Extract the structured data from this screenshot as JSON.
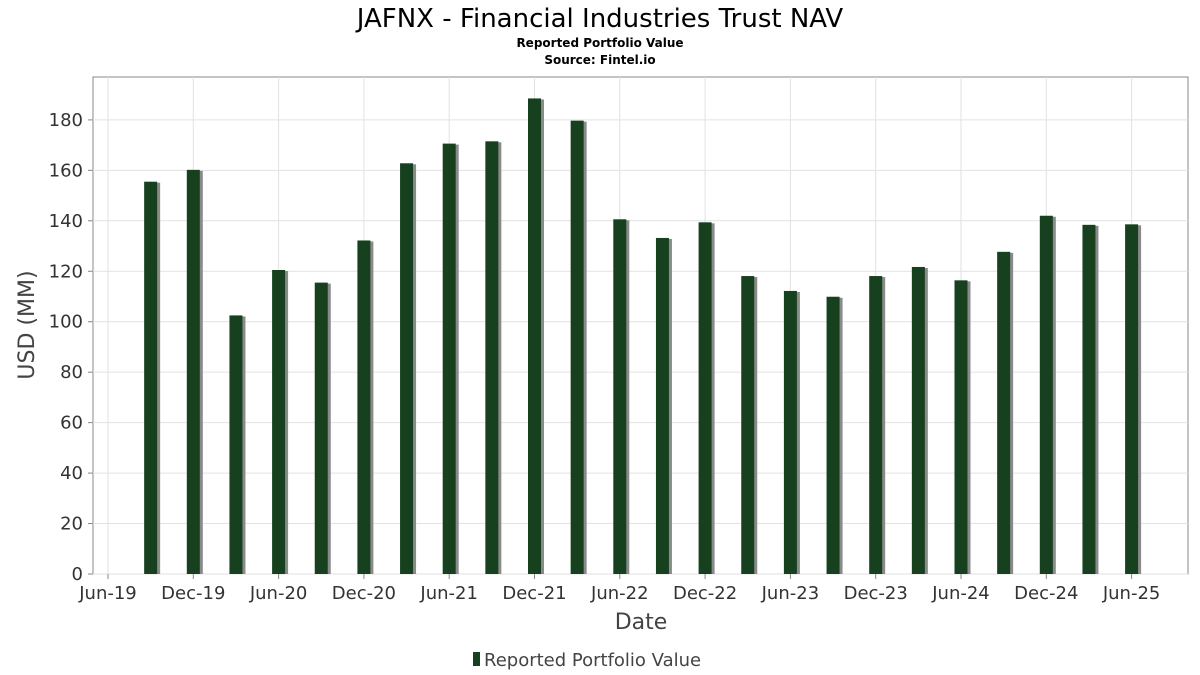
{
  "chart_data": {
    "type": "bar",
    "title": "JAFNX - Financial Industries Trust NAV",
    "subtitle": "Reported Portfolio Value",
    "source": "Source: Fintel.io",
    "xlabel": "Date",
    "ylabel": "USD (MM)",
    "ylim": [
      0,
      197
    ],
    "yticks": [
      0,
      20,
      40,
      60,
      80,
      100,
      120,
      140,
      160,
      180
    ],
    "xticks": [
      "Jun-19",
      "Dec-19",
      "Jun-20",
      "Dec-20",
      "Jun-21",
      "Dec-21",
      "Jun-22",
      "Dec-22",
      "Jun-23",
      "Dec-23",
      "Jun-24",
      "Dec-24",
      "Jun-25"
    ],
    "grid": true,
    "legend": "bottom-center",
    "series": [
      {
        "name": "Reported Portfolio Value",
        "color": "#17401f",
        "values": [
          155.5,
          160.2,
          102.5,
          120.5,
          115.5,
          132.2,
          162.8,
          170.6,
          171.5,
          188.5,
          179.7,
          140.6,
          133.2,
          139.4,
          118.1,
          112.2,
          109.9,
          118.1,
          121.7,
          116.4,
          127.7,
          142.0,
          138.4,
          138.6
        ]
      }
    ]
  }
}
